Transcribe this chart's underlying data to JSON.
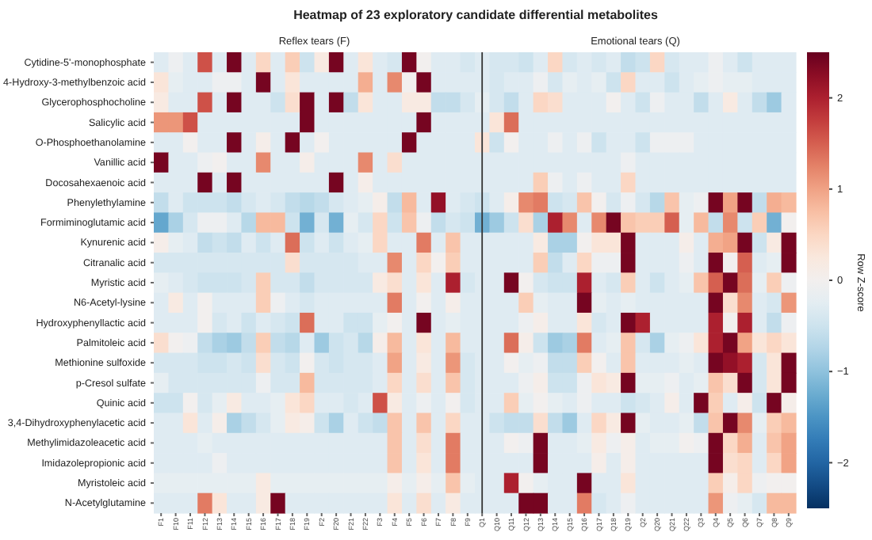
{
  "chart_data": {
    "type": "heatmap",
    "title": "Heatmap of 23 exploratory candidate differential metabolites",
    "categories": [
      "F1",
      "F10",
      "F11",
      "F12",
      "F13",
      "F14",
      "F15",
      "F16",
      "F17",
      "F18",
      "F19",
      "F2",
      "F20",
      "F21",
      "F22",
      "F3",
      "F4",
      "F5",
      "F6",
      "F7",
      "F8",
      "F9",
      "Q1",
      "Q10",
      "Q11",
      "Q12",
      "Q13",
      "Q14",
      "Q15",
      "Q16",
      "Q17",
      "Q18",
      "Q19",
      "Q2",
      "Q20",
      "Q21",
      "Q22",
      "Q3",
      "Q4",
      "Q5",
      "Q6",
      "Q7",
      "Q8",
      "Q9"
    ],
    "y_categories": [
      "Cytidine-5'-monophosphate",
      "4-Hydroxy-3-methylbenzoic acid",
      "Glycerophosphocholine",
      "Salicylic acid",
      "O-Phosphoethanolamine",
      "Vanillic acid",
      "Docosahexaenoic acid",
      "Phenylethylamine",
      "Formiminoglutamic acid",
      "Kynurenic acid",
      "Citranalic acid",
      "Myristic acid",
      "N6-Acetyl-lysine",
      "Hydroxyphenyllactic acid",
      "Palmitoleic acid",
      "Methionine sulfoxide",
      "p-Cresol sulfate",
      "Quinic acid",
      "3,4-Dihydroxyphenylacetic acid",
      "Methylimidazoleacetic acid",
      "Imidazolepropionic acid",
      "Myristoleic acid",
      "N-Acetylglutamine"
    ],
    "cells": [
      [
        -0.3,
        -0.1,
        -0.3,
        1.6,
        -0.3,
        2.4,
        -0.3,
        0.5,
        -0.3,
        0.6,
        -0.5,
        0.2,
        2.4,
        -0.3,
        0.3,
        -0.3,
        -0.4,
        2.4,
        0,
        -0.3,
        -0.3,
        -0.4,
        -0.3,
        -0.4,
        -0.4,
        -0.5,
        -0.3,
        0.5,
        -0.4,
        -0.3,
        -0.4,
        -0.3,
        -0.6,
        -0.5,
        0.5,
        -0.4,
        -0.3,
        -0.3,
        -0.1,
        -0.3,
        -0.5,
        -0.3,
        -0.3,
        -0.3
      ],
      [
        0.3,
        -0.2,
        -0.3,
        -0.3,
        -0.1,
        -0.1,
        -0.3,
        2.4,
        -0.3,
        0.3,
        -0.3,
        -0.3,
        -0.3,
        -0.3,
        0.9,
        -0.3,
        1.2,
        0,
        2.4,
        -0.3,
        -0.3,
        -0.3,
        -0.3,
        -0.4,
        -0.3,
        -0.3,
        -0.1,
        -0.4,
        -0.2,
        -0.3,
        -0.2,
        -0.5,
        0.5,
        -0.3,
        -0.3,
        -0.5,
        -0.3,
        -0.2,
        -0.1,
        -0.2,
        -0.2,
        -0.3,
        -0.3,
        -0.3
      ],
      [
        0.2,
        -0.3,
        -0.3,
        1.6,
        -0.3,
        2.4,
        -0.3,
        -0.3,
        -0.5,
        0.4,
        2.4,
        -0.3,
        2.4,
        -0.6,
        0.3,
        -0.3,
        -0.3,
        0.2,
        0.2,
        -0.6,
        -0.6,
        -0.4,
        -0.2,
        -0.4,
        -0.6,
        -0.3,
        0.5,
        0.4,
        -0.3,
        -0.3,
        -0.3,
        0,
        -0.3,
        -0.5,
        -0.1,
        -0.3,
        -0.3,
        -0.6,
        -0.3,
        0.2,
        -0.3,
        -0.6,
        -0.9,
        -0.3
      ],
      [
        1.1,
        1.1,
        1.6,
        -0.3,
        -0.3,
        -0.3,
        -0.3,
        -0.3,
        -0.3,
        -0.3,
        2.4,
        -0.3,
        -0.3,
        -0.3,
        -0.3,
        -0.3,
        -0.3,
        -0.3,
        2.4,
        -0.3,
        -0.3,
        -0.3,
        -0.3,
        0.3,
        1.4,
        -0.3,
        -0.3,
        -0.3,
        -0.3,
        -0.3,
        -0.3,
        -0.3,
        -0.3,
        -0.3,
        -0.3,
        -0.3,
        -0.3,
        -0.3,
        -0.3,
        -0.3,
        -0.3,
        -0.3,
        -0.3,
        -0.3
      ],
      [
        -0.3,
        -0.3,
        0,
        -0.3,
        -0.3,
        2.4,
        -0.3,
        0.1,
        -0.3,
        2.4,
        -0.3,
        0,
        -0.3,
        -0.3,
        -0.3,
        -0.3,
        -0.3,
        2.4,
        -0.3,
        -0.3,
        -0.3,
        -0.3,
        0.3,
        -0.5,
        0,
        -0.3,
        -0.3,
        -0.1,
        -0.3,
        -0.1,
        -0.5,
        -0.3,
        -0.3,
        -0.5,
        -0.1,
        -0.1,
        -0.1,
        -0.3,
        -0.3,
        -0.3,
        -0.3,
        -0.3,
        -0.3,
        -0.3
      ],
      [
        2.4,
        -0.3,
        -0.3,
        -0.1,
        0,
        -0.3,
        -0.3,
        1.2,
        -0.3,
        -0.3,
        0.1,
        -0.3,
        -0.3,
        -0.3,
        1.2,
        -0.3,
        0.4,
        -0.3,
        -0.3,
        -0.3,
        -0.3,
        -0.3,
        -0.3,
        -0.3,
        -0.3,
        -0.3,
        -0.3,
        -0.3,
        -0.3,
        -0.3,
        -0.3,
        -0.3,
        -0.1,
        -0.3,
        -0.3,
        -0.3,
        -0.3,
        -0.3,
        -0.3,
        -0.3,
        -0.3,
        -0.3,
        -0.3,
        -0.3
      ],
      [
        -0.3,
        -0.3,
        -0.3,
        2.4,
        -0.3,
        2.4,
        -0.3,
        -0.3,
        -0.3,
        -0.3,
        -0.3,
        -0.3,
        2.4,
        -0.3,
        0.1,
        -0.3,
        -0.3,
        -0.3,
        -0.3,
        -0.3,
        -0.3,
        -0.3,
        -0.3,
        -0.3,
        -0.3,
        -0.3,
        0.6,
        -0.1,
        -0.3,
        -0.1,
        -0.3,
        -0.3,
        0.5,
        -0.3,
        -0.3,
        -0.3,
        -0.3,
        -0.3,
        -0.3,
        -0.3,
        -0.3,
        -0.3,
        -0.3,
        -0.3
      ],
      [
        -0.6,
        -0.3,
        -0.5,
        -0.5,
        -0.5,
        -0.6,
        -0.4,
        -0.3,
        -0.4,
        -0.6,
        -0.7,
        -0.6,
        -0.4,
        -0.3,
        -0.2,
        0.1,
        -0.6,
        0.8,
        -0.3,
        2.2,
        -0.3,
        -0.4,
        -0.5,
        -0.3,
        0.1,
        1.2,
        1.3,
        -0.5,
        -0.4,
        0.7,
        0,
        -0.4,
        -0.1,
        -0.4,
        -0.7,
        0.7,
        -0.2,
        -0.1,
        2.4,
        1.0,
        2.4,
        -0.6,
        0.9,
        0.8
      ],
      [
        -1.3,
        -0.8,
        -0.4,
        -0.1,
        -0.1,
        -0.3,
        -0.7,
        0.8,
        0.8,
        -0.5,
        -1.2,
        -0.4,
        -1.2,
        -0.2,
        -0.4,
        0.5,
        -0.5,
        0.7,
        -0.1,
        -0.6,
        -0.4,
        -0.5,
        -1.2,
        -0.9,
        -0.5,
        0.4,
        -0.8,
        2.0,
        1.2,
        -0.3,
        1.2,
        2.4,
        0.7,
        0.6,
        0.6,
        1.5,
        -0.2,
        0.8,
        -0.6,
        1.2,
        -0.5,
        0.6,
        -1.2,
        0
      ],
      [
        0.1,
        -0.2,
        -0.3,
        -0.6,
        -0.5,
        -0.6,
        -0.3,
        -0.5,
        -0.3,
        1.4,
        -0.5,
        -0.3,
        -0.5,
        -0.3,
        -0.2,
        0.5,
        -0.3,
        -0.3,
        1.3,
        -0.3,
        0.7,
        -0.3,
        -0.3,
        -0.3,
        -0.3,
        -0.3,
        0.2,
        -0.8,
        -0.8,
        0,
        0.3,
        0.3,
        2.4,
        -0.3,
        -0.3,
        -0.3,
        0.1,
        -0.3,
        0.9,
        1.0,
        2.4,
        -0.5,
        0.2,
        2.4
      ],
      [
        -0.4,
        -0.4,
        -0.4,
        -0.4,
        -0.4,
        -0.4,
        -0.4,
        -0.4,
        -0.4,
        0.4,
        -0.4,
        -0.4,
        -0.4,
        -0.4,
        -0.3,
        -0.3,
        1.2,
        -0.3,
        0.5,
        0,
        0.6,
        -0.3,
        -0.3,
        -0.3,
        -0.3,
        -0.3,
        0.6,
        -0.6,
        -0.3,
        0.5,
        -0.1,
        -0.1,
        2.4,
        -0.3,
        -0.3,
        -0.3,
        -0.1,
        -0.3,
        2.4,
        0,
        1.5,
        -0.3,
        -0.2,
        2.4
      ],
      [
        -0.2,
        -0.3,
        -0.4,
        -0.5,
        -0.5,
        -0.5,
        -0.4,
        0.6,
        -0.4,
        -0.4,
        -0.6,
        -0.4,
        -0.4,
        -0.4,
        -0.4,
        0.2,
        0.4,
        -0.3,
        0.3,
        -0.3,
        2.0,
        -0.4,
        -0.3,
        -0.3,
        2.4,
        0,
        -0.4,
        -0.5,
        -0.5,
        2.0,
        -0.3,
        -0.4,
        0.6,
        -0.3,
        -0.5,
        -0.3,
        -0.2,
        0.7,
        1.5,
        2.4,
        1.4,
        -0.2,
        0.6,
        -0.1
      ],
      [
        -0.3,
        0.2,
        -0.3,
        0,
        -0.3,
        -0.3,
        -0.3,
        0.6,
        -0.1,
        -0.3,
        -0.4,
        -0.3,
        -0.3,
        -0.3,
        -0.3,
        -0.3,
        1.3,
        -0.3,
        0,
        -0.3,
        0.1,
        -0.3,
        -0.3,
        -0.3,
        -0.3,
        0.6,
        -0.2,
        -0.3,
        -0.3,
        2.4,
        -0.2,
        -0.3,
        -0.2,
        -0.3,
        -0.3,
        -0.3,
        -0.3,
        -0.3,
        2.4,
        0.4,
        1.2,
        -0.3,
        -0.4,
        1.1
      ],
      [
        -0.3,
        -0.3,
        -0.3,
        0,
        -0.4,
        -0.3,
        -0.5,
        -0.3,
        -0.4,
        -0.5,
        1.4,
        -0.3,
        -0.3,
        -0.5,
        -0.5,
        -0.2,
        0,
        -0.3,
        2.4,
        -0.3,
        -0.2,
        -0.3,
        -0.3,
        -0.3,
        -0.3,
        -0.1,
        0.1,
        -0.3,
        -0.3,
        0.3,
        -0.4,
        -0.3,
        2.4,
        2.0,
        -0.3,
        -0.3,
        -0.3,
        -0.3,
        2.0,
        0,
        2.0,
        -0.3,
        -0.6,
        -0.1
      ],
      [
        0.4,
        0,
        -0.1,
        -0.6,
        -0.8,
        -0.9,
        -0.6,
        0.6,
        -0.6,
        -0.7,
        -0.3,
        -0.9,
        -0.5,
        -0.4,
        -0.7,
        0.1,
        0.8,
        -0.3,
        0.3,
        -0.3,
        0.8,
        -0.3,
        -0.3,
        -0.3,
        1.4,
        0.1,
        -0.5,
        -0.9,
        -0.8,
        1.3,
        -0.3,
        -0.2,
        0.7,
        -0.4,
        -0.8,
        -0.2,
        -0.1,
        0.3,
        2.0,
        2.4,
        1.0,
        0.3,
        0.5,
        0.3
      ],
      [
        -0.4,
        -0.4,
        -0.4,
        -0.5,
        -0.5,
        -0.4,
        -0.5,
        0.4,
        -0.4,
        -0.5,
        0,
        -0.4,
        -0.5,
        -0.4,
        -0.4,
        -0.3,
        1.0,
        -0.3,
        0.2,
        -0.3,
        1.1,
        -0.4,
        -0.3,
        -0.3,
        0,
        -0.2,
        -0.1,
        -0.6,
        -0.6,
        0.6,
        0,
        -0.3,
        0.7,
        -0.3,
        -0.3,
        -0.3,
        -0.2,
        -0.3,
        2.4,
        2.2,
        2.0,
        -0.4,
        0.3,
        2.4
      ],
      [
        -0.2,
        -0.4,
        -0.4,
        -0.4,
        -0.4,
        -0.4,
        -0.4,
        -0.1,
        -0.4,
        -0.4,
        0.8,
        -0.4,
        -0.4,
        -0.4,
        -0.4,
        -0.3,
        0.5,
        -0.3,
        0.4,
        -0.3,
        0.7,
        -0.4,
        -0.3,
        -0.3,
        -0.3,
        -0.1,
        0.1,
        -0.5,
        -0.5,
        -0.1,
        0.3,
        0.2,
        2.4,
        -0.2,
        -0.2,
        -0.1,
        -0.3,
        -0.2,
        0.7,
        0.4,
        2.4,
        -0.4,
        0.3,
        2.4
      ],
      [
        -0.5,
        -0.5,
        0,
        -0.4,
        -0.2,
        0.2,
        -0.3,
        -0.3,
        -0.2,
        0.3,
        0.5,
        -0.3,
        -0.3,
        -0.4,
        -0.3,
        1.6,
        0.2,
        -0.3,
        -0.1,
        -0.3,
        0,
        -0.4,
        -0.3,
        -0.3,
        0.6,
        -0.2,
        0,
        -0.2,
        -0.3,
        -0.1,
        -0.3,
        -0.3,
        -0.5,
        -0.4,
        -0.3,
        0.1,
        -0.3,
        2.4,
        0.6,
        -0.3,
        0.1,
        -0.5,
        2.4,
        0.1
      ],
      [
        -0.3,
        -0.3,
        0.3,
        -0.3,
        0.1,
        -0.8,
        -0.6,
        -0.4,
        -0.2,
        0.2,
        0.1,
        -0.5,
        -0.8,
        -0.3,
        -0.5,
        -0.6,
        0.7,
        -0.3,
        0.7,
        -0.3,
        0.5,
        -0.3,
        -0.3,
        -0.5,
        -0.6,
        -0.6,
        0.4,
        -0.6,
        -0.9,
        -0.3,
        0.5,
        0.2,
        2.4,
        -0.2,
        -0.3,
        -0.3,
        -0.2,
        -0.6,
        0.7,
        2.4,
        1.2,
        -0.2,
        0.6,
        0.8
      ],
      [
        -0.3,
        -0.3,
        -0.3,
        -0.2,
        -0.3,
        -0.3,
        -0.3,
        -0.3,
        -0.3,
        -0.3,
        -0.3,
        -0.3,
        -0.3,
        -0.3,
        -0.3,
        -0.3,
        0.7,
        -0.3,
        0.4,
        -0.3,
        1.3,
        -0.3,
        -0.3,
        -0.3,
        0,
        -0.1,
        2.4,
        -0.3,
        -0.3,
        -0.2,
        0.2,
        -0.1,
        0.1,
        -0.3,
        -0.2,
        -0.2,
        0,
        -0.1,
        2.4,
        0.5,
        0.9,
        -0.3,
        0.7,
        1.0
      ],
      [
        -0.3,
        -0.3,
        -0.3,
        -0.3,
        -0.1,
        -0.3,
        -0.3,
        -0.3,
        -0.3,
        -0.3,
        -0.3,
        -0.3,
        -0.3,
        -0.3,
        -0.3,
        -0.3,
        0.7,
        -0.3,
        0.3,
        -0.3,
        1.3,
        -0.3,
        -0.3,
        -0.3,
        -0.3,
        -0.3,
        2.4,
        -0.3,
        -0.3,
        -0.3,
        0.1,
        -0.3,
        0.1,
        -0.3,
        -0.3,
        -0.3,
        -0.3,
        -0.3,
        2.4,
        0.4,
        0.5,
        -0.3,
        0.5,
        1.0
      ],
      [
        -0.2,
        -0.2,
        -0.2,
        -0.2,
        -0.2,
        -0.2,
        -0.2,
        0.2,
        -0.2,
        -0.2,
        -0.2,
        -0.2,
        -0.2,
        -0.2,
        -0.2,
        -0.2,
        0.1,
        -0.2,
        0.1,
        -0.2,
        0.7,
        -0.2,
        -0.3,
        -0.3,
        2.0,
        0,
        -0.2,
        -0.3,
        -0.3,
        2.4,
        -0.3,
        -0.3,
        0.3,
        -0.3,
        -0.3,
        -0.3,
        -0.3,
        -0.3,
        0.6,
        0.1,
        0.5,
        -0.1,
        0,
        0
      ],
      [
        -0.3,
        -0.3,
        -0.3,
        1.3,
        0.3,
        -0.3,
        -0.3,
        0.2,
        2.4,
        -0.3,
        -0.3,
        -0.3,
        -0.3,
        -0.3,
        -0.3,
        -0.3,
        0.3,
        -0.3,
        0.4,
        -0.3,
        0.2,
        -0.3,
        -0.3,
        -0.3,
        -0.3,
        2.4,
        2.4,
        -0.3,
        -0.3,
        1.3,
        -0.4,
        -0.3,
        -0.1,
        -0.3,
        -0.3,
        -0.3,
        -0.3,
        -0.3,
        1.1,
        -0.1,
        -0.2,
        -0.4,
        0.8,
        0.8
      ]
    ],
    "clim": [
      -2.5,
      2.5
    ],
    "cticks": [
      -2,
      -1,
      0,
      1,
      2
    ],
    "clabel": "Row Z-score",
    "ref_lines": [
      {
        "axis": "x",
        "value": "Q1",
        "color": "#333333"
      }
    ],
    "annotations": [
      "Reflex tears (F)",
      "Emotional tears (Q)"
    ]
  }
}
